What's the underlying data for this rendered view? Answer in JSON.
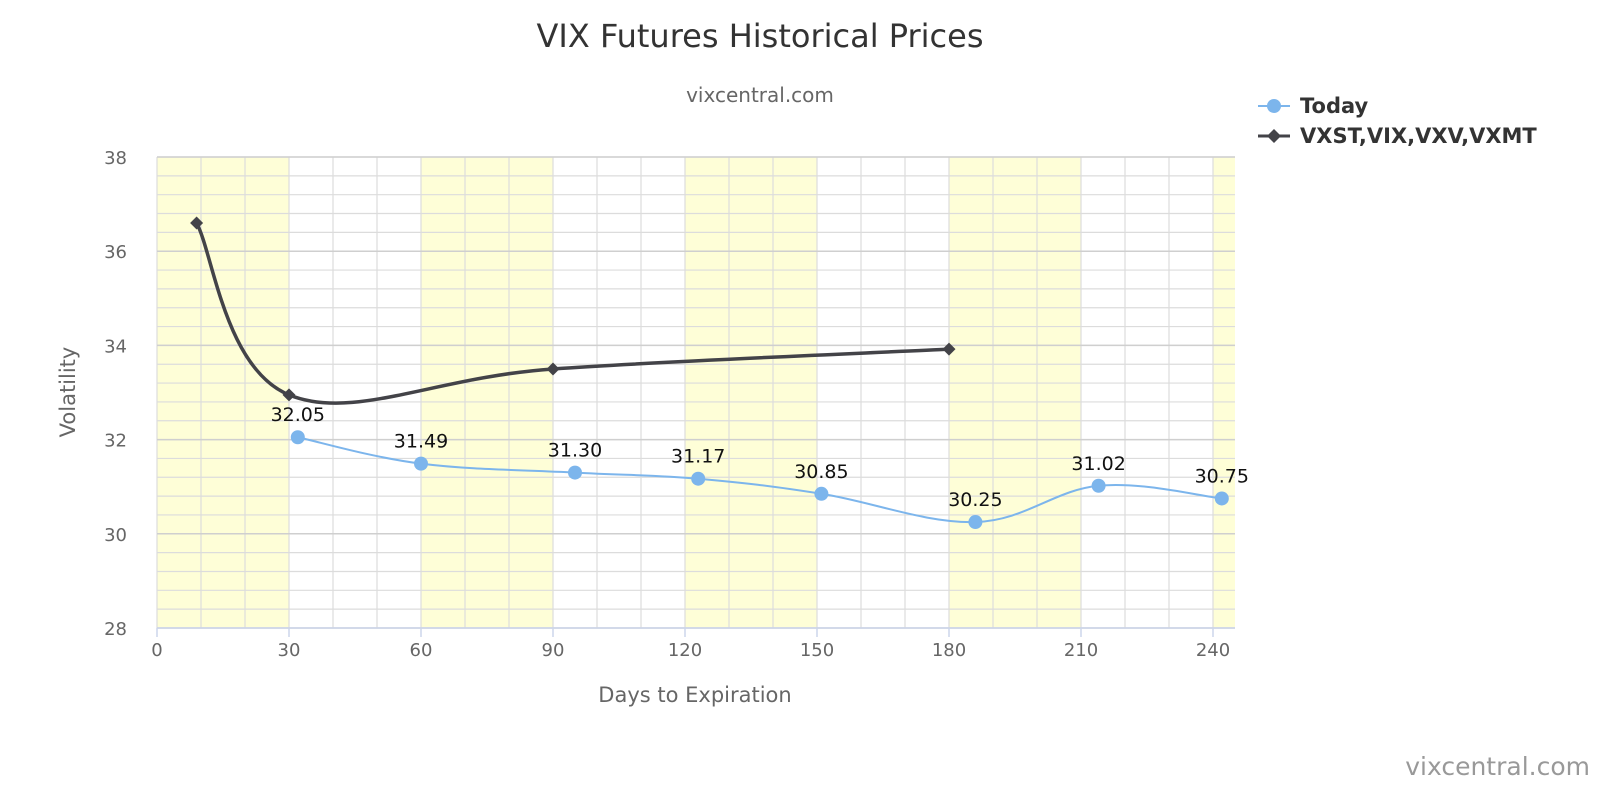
{
  "chart_data": {
    "type": "line",
    "title": "VIX Futures Historical Prices",
    "subtitle": "vixcentral.com",
    "xlabel": "Days to Expiration",
    "ylabel": "Volatility",
    "xlim": [
      0,
      245
    ],
    "ylim": [
      28,
      38
    ],
    "x_ticks": [
      0,
      30,
      60,
      90,
      120,
      150,
      180,
      210,
      240
    ],
    "x_tick_labels": [
      "0",
      "30",
      "60",
      "90",
      "120",
      "150",
      "180",
      "210",
      "240"
    ],
    "y_ticks": [
      28,
      30,
      32,
      34,
      36,
      38
    ],
    "y_tick_labels": [
      "28",
      "30",
      "32",
      "34",
      "36",
      "38"
    ],
    "x_minor_interval": 10,
    "y_minor_interval": 0.4,
    "grid": true,
    "plot_bands": [
      [
        0,
        30
      ],
      [
        60,
        90
      ],
      [
        120,
        150
      ],
      [
        180,
        210
      ],
      [
        240,
        245
      ]
    ],
    "band_color": "#fefed7",
    "legend_position": "top-right",
    "series": [
      {
        "name": "Today",
        "color": "#7cb5ec",
        "marker": "circle",
        "x": [
          32,
          60,
          95,
          123,
          151,
          186,
          214,
          242
        ],
        "y": [
          32.05,
          31.49,
          31.3,
          31.17,
          30.85,
          30.25,
          31.02,
          30.75
        ],
        "data_labels": [
          "32.05",
          "31.49",
          "31.30",
          "31.17",
          "30.85",
          "30.25",
          "31.02",
          "30.75"
        ]
      },
      {
        "name": "VXST,VIX,VXV,VXMT",
        "color": "#434348",
        "marker": "diamond",
        "x": [
          9,
          30,
          90,
          180
        ],
        "y": [
          36.6,
          32.95,
          33.5,
          33.92
        ]
      }
    ],
    "credit": "vixcentral.com"
  }
}
